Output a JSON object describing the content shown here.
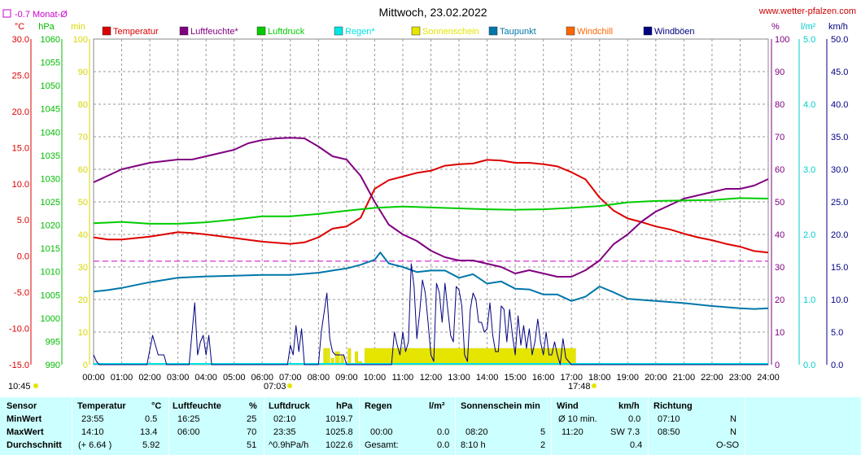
{
  "chart_data": {
    "type": "line",
    "title": "Mittwoch, 23.02.2022",
    "site": "www.wetter-pfalzen.com",
    "marker_note": "-0.7 Monat-Ø",
    "marker_value": -0.7,
    "sunrise": "07:03",
    "sunset": "17:48",
    "start_time": "10:45",
    "grid": true,
    "x_ticks": [
      "00:00",
      "01:00",
      "02:00",
      "03:00",
      "04:00",
      "05:00",
      "06:00",
      "07:00",
      "08:00",
      "09:00",
      "10:00",
      "11:00",
      "12:00",
      "13:00",
      "14:00",
      "15:00",
      "16:00",
      "17:00",
      "18:00",
      "19:00",
      "20:00",
      "21:00",
      "22:00",
      "23:00",
      "24:00"
    ],
    "axes": {
      "temp": {
        "unit": "°C",
        "range": [
          -15,
          30
        ],
        "ticks": [
          "30.0",
          "25.0",
          "20.0",
          "15.0",
          "10.0",
          "5.0",
          "0.0",
          "-5.0",
          "-10.0",
          "-15.0"
        ]
      },
      "pressure": {
        "unit": "hPa",
        "range": [
          990,
          1060
        ],
        "ticks": [
          "1060",
          "1055",
          "1050",
          "1045",
          "1040",
          "1035",
          "1030",
          "1025",
          "1020",
          "1015",
          "1010",
          "1005",
          "1000",
          "995",
          "990"
        ]
      },
      "sun_minutes": {
        "unit": "min",
        "range": [
          0,
          100
        ],
        "ticks": [
          "100",
          "90",
          "80",
          "70",
          "60",
          "50",
          "40",
          "30",
          "20",
          "10",
          "0"
        ]
      },
      "humidity": {
        "unit": "%",
        "range": [
          0,
          100
        ],
        "ticks": [
          "100",
          "90",
          "80",
          "70",
          "60",
          "50",
          "40",
          "30",
          "20",
          "10",
          "0"
        ]
      },
      "rain": {
        "unit": "l/m²",
        "range": [
          0,
          5
        ],
        "ticks": [
          "5.0",
          "4.0",
          "3.0",
          "2.0",
          "1.0",
          "0.0"
        ]
      },
      "wind": {
        "unit": "km/h",
        "range": [
          0,
          50
        ],
        "ticks": [
          "50.0",
          "45.0",
          "40.0",
          "35.0",
          "30.0",
          "25.0",
          "20.0",
          "15.0",
          "10.0",
          "5.0",
          "0.0"
        ]
      }
    },
    "legend": [
      {
        "name": "Temperatur",
        "color": "#dd0000"
      },
      {
        "name": "Luftfeuchte*",
        "color": "#800080"
      },
      {
        "name": "Luftdruck",
        "color": "#00cc00"
      },
      {
        "name": "Regen*",
        "color": "#00e5e5"
      },
      {
        "name": "Sonnenschein",
        "color": "#e5e500"
      },
      {
        "name": "Taupunkt",
        "color": "#0077aa"
      },
      {
        "name": "Windchill",
        "color": "#ff6600"
      },
      {
        "name": "Windböen",
        "color": "#000080"
      }
    ],
    "series": [
      {
        "name": "Temperatur",
        "axis": "temp",
        "color": "#dd0000",
        "x": [
          0,
          0.5,
          1,
          2,
          3,
          3.5,
          4,
          5,
          6,
          7,
          7.5,
          8,
          8.5,
          9,
          9.5,
          10,
          10.5,
          11,
          11.5,
          12,
          12.5,
          13,
          13.5,
          14,
          14.5,
          15,
          15.5,
          16,
          16.5,
          17,
          17.5,
          18,
          18.5,
          19,
          19.5,
          20,
          20.5,
          21,
          21.5,
          22,
          22.5,
          23,
          23.5,
          24
        ],
        "y": [
          2.6,
          2.3,
          2.3,
          2.7,
          3.3,
          3.2,
          3.0,
          2.5,
          2.0,
          1.7,
          1.9,
          2.6,
          3.8,
          4.1,
          5.3,
          9.3,
          10.5,
          11.0,
          11.5,
          11.8,
          12.5,
          12.7,
          12.8,
          13.3,
          13.2,
          12.9,
          12.9,
          12.7,
          12.4,
          11.6,
          10.6,
          8.1,
          6.3,
          5.2,
          4.7,
          4.1,
          3.7,
          3.1,
          2.6,
          2.2,
          1.7,
          1.3,
          0.7,
          0.5
        ]
      },
      {
        "name": "Luftfeuchte*",
        "axis": "humidity",
        "color": "#800080",
        "x": [
          0,
          0.5,
          1,
          2,
          3,
          3.5,
          4,
          5,
          5.5,
          6,
          6.5,
          7,
          7.5,
          8,
          8.5,
          9,
          9.5,
          10,
          10.5,
          11,
          11.5,
          12,
          12.5,
          13,
          13.5,
          14,
          14.5,
          15,
          15.5,
          16,
          16.5,
          17,
          17.5,
          18,
          18.5,
          19,
          19.5,
          20,
          20.5,
          21,
          21.5,
          22,
          22.5,
          23,
          23.5,
          24
        ],
        "y": [
          56,
          58,
          60,
          62,
          63,
          63,
          64,
          66,
          68,
          69,
          69.5,
          69.7,
          69.5,
          67,
          64,
          63,
          58,
          50,
          43,
          40,
          38,
          35,
          33,
          32,
          32,
          31,
          30,
          28,
          29,
          28,
          27,
          27,
          29,
          32,
          37,
          40,
          44,
          47,
          49,
          51,
          52,
          53,
          54,
          54,
          55,
          57
        ]
      },
      {
        "name": "Luftdruck",
        "axis": "pressure",
        "color": "#00cc00",
        "x": [
          0,
          1,
          2,
          3,
          4,
          5,
          6,
          7,
          8,
          9,
          10,
          11,
          12,
          13,
          14,
          15,
          16,
          17,
          18,
          19,
          20,
          21,
          22,
          23,
          24
        ],
        "y": [
          1020.4,
          1020.7,
          1020.3,
          1020.3,
          1020.6,
          1021.2,
          1021.9,
          1021.9,
          1022.4,
          1023.1,
          1023.7,
          1024.0,
          1023.8,
          1023.6,
          1023.4,
          1023.3,
          1023.4,
          1023.7,
          1024.1,
          1024.9,
          1025.2,
          1025.3,
          1025.4,
          1025.8,
          1025.7
        ]
      },
      {
        "name": "Taupunkt",
        "axis": "temp",
        "color": "#0077aa",
        "x": [
          0,
          0.5,
          1,
          1.5,
          2,
          2.5,
          3,
          4,
          5,
          6,
          7,
          8,
          8.5,
          9,
          9.5,
          10,
          10.2,
          10.5,
          11,
          11.5,
          12,
          12.5,
          13,
          13.5,
          14,
          14.5,
          15,
          15.5,
          16,
          16.5,
          17,
          17.5,
          18,
          18.5,
          19,
          20,
          21,
          22,
          23,
          23.5,
          24
        ],
        "y": [
          -4.9,
          -4.7,
          -4.4,
          -4.0,
          -3.6,
          -3.3,
          -3.0,
          -2.8,
          -2.7,
          -2.6,
          -2.6,
          -2.3,
          -2.0,
          -1.7,
          -1.2,
          -0.5,
          0.5,
          -1.0,
          -1.5,
          -2.2,
          -2.0,
          -2.0,
          -3.0,
          -2.5,
          -3.8,
          -3.5,
          -4.5,
          -4.6,
          -5.3,
          -5.3,
          -6.2,
          -5.6,
          -4.2,
          -5.0,
          -5.9,
          -6.2,
          -6.5,
          -6.9,
          -7.2,
          -7.3,
          -7.2
        ]
      },
      {
        "name": "Windböen",
        "axis": "wind",
        "color": "#000080",
        "x": [
          0,
          0.1,
          0.2,
          0.3,
          1.9,
          2.1,
          2.3,
          2.5,
          2.6,
          3.4,
          3.6,
          3.7,
          3.8,
          3.9,
          4.0,
          4.1,
          4.2,
          4.3,
          4.4,
          6.9,
          7.0,
          7.1,
          7.2,
          7.3,
          7.4,
          7.5,
          8.0,
          8.1,
          8.3,
          8.4,
          8.5,
          8.6,
          8.9,
          9.0,
          9.1,
          10.6,
          10.7,
          10.8,
          10.9,
          11.0,
          11.1,
          11.2,
          11.3,
          11.4,
          11.5,
          11.6,
          11.7,
          11.8,
          11.9,
          12.0,
          12.1,
          12.2,
          12.3,
          12.4,
          12.5,
          12.6,
          12.7,
          12.8,
          12.9,
          13.0,
          13.1,
          13.2,
          13.3,
          13.4,
          13.5,
          13.6,
          13.7,
          13.8,
          13.9,
          14.0,
          14.1,
          14.2,
          14.3,
          14.4,
          14.5,
          14.6,
          14.7,
          14.8,
          14.9,
          15.0,
          15.1,
          15.2,
          15.3,
          15.4,
          15.5,
          15.6,
          15.7,
          15.8,
          15.9,
          16.0,
          16.1,
          16.2,
          16.3,
          16.4,
          16.5,
          16.6,
          16.7,
          16.8,
          17.0,
          24.0
        ],
        "y": [
          1.5,
          0.5,
          0,
          0,
          0,
          4.5,
          1.5,
          1.5,
          0,
          0,
          9.5,
          1.5,
          3.5,
          4.5,
          1.5,
          4.5,
          0,
          0,
          0,
          0,
          3.0,
          1.5,
          6.0,
          2.0,
          5.5,
          0,
          0,
          5.0,
          11.0,
          4.0,
          2.0,
          1.5,
          1.5,
          0,
          0,
          0,
          5.0,
          3.0,
          1.5,
          5.0,
          2.0,
          3.5,
          15.5,
          12.0,
          4.0,
          8.0,
          13.0,
          11.0,
          6.5,
          1.5,
          0.5,
          12.5,
          11.0,
          6.5,
          12.5,
          8.5,
          4.5,
          3.5,
          12.0,
          11.5,
          9.0,
          1.5,
          0.5,
          8.5,
          11.0,
          10.0,
          6.5,
          6.5,
          5.0,
          5.5,
          9.5,
          4.5,
          2.0,
          2.0,
          9.0,
          8.5,
          3.5,
          8.5,
          4.5,
          1.5,
          7.5,
          3.0,
          6.0,
          2.5,
          5.5,
          1.5,
          3.5,
          7.0,
          3.5,
          1.5,
          5.0,
          1.5,
          1.5,
          3.5,
          1.5,
          0,
          4.0,
          1.0,
          0,
          0
        ]
      }
    ],
    "sunshine_bars": {
      "axis": "sun_minutes",
      "color": "#e5e500",
      "intervals": [
        [
          8.18,
          8.28,
          5
        ],
        [
          8.3,
          8.4,
          5
        ],
        [
          8.45,
          8.55,
          2
        ],
        [
          8.6,
          8.75,
          4
        ],
        [
          8.8,
          8.9,
          3
        ],
        [
          9.05,
          9.15,
          5
        ],
        [
          9.3,
          9.4,
          4
        ],
        [
          9.4,
          9.55,
          1
        ],
        [
          9.65,
          17.15,
          5
        ]
      ]
    }
  },
  "stats": {
    "headers": [
      {
        "label": "Sensor",
        "unit": ""
      },
      {
        "label": "Temperatur",
        "unit": "°C"
      },
      {
        "label": "Luftfeuchte",
        "unit": "%"
      },
      {
        "label": "Luftdruck",
        "unit": "hPa"
      },
      {
        "label": "Regen",
        "unit": "l/m²"
      },
      {
        "label": "Sonnenschein min",
        "unit": ""
      },
      {
        "label": "Wind",
        "unit": "km/h"
      },
      {
        "label": "Richtung",
        "unit": ""
      }
    ],
    "rows": [
      {
        "label": "MinWert",
        "cells": [
          "23:55",
          "0.5",
          "16:25",
          "25",
          "02:10",
          "1019.7",
          "",
          "",
          "",
          "",
          "Ø 10 min.",
          "0.0",
          "07:10",
          "N"
        ]
      },
      {
        "label": "MaxWert",
        "cells": [
          "14:10",
          "13.4",
          "06:00",
          "70",
          "23:35",
          "1025.8",
          "00:00",
          "0.0",
          "08:20",
          "5",
          "11:20",
          "SW 7.3",
          "08:50",
          "N"
        ]
      },
      {
        "label": "Durchschnitt",
        "cells": [
          "(+ 6.64 )",
          "5.92",
          "",
          "51",
          "^0.9hPa/h",
          "1022.6",
          "Gesamt:",
          "0.0",
          "8:10 h",
          "2",
          "",
          "0.4",
          "",
          "O-SO"
        ]
      }
    ]
  }
}
